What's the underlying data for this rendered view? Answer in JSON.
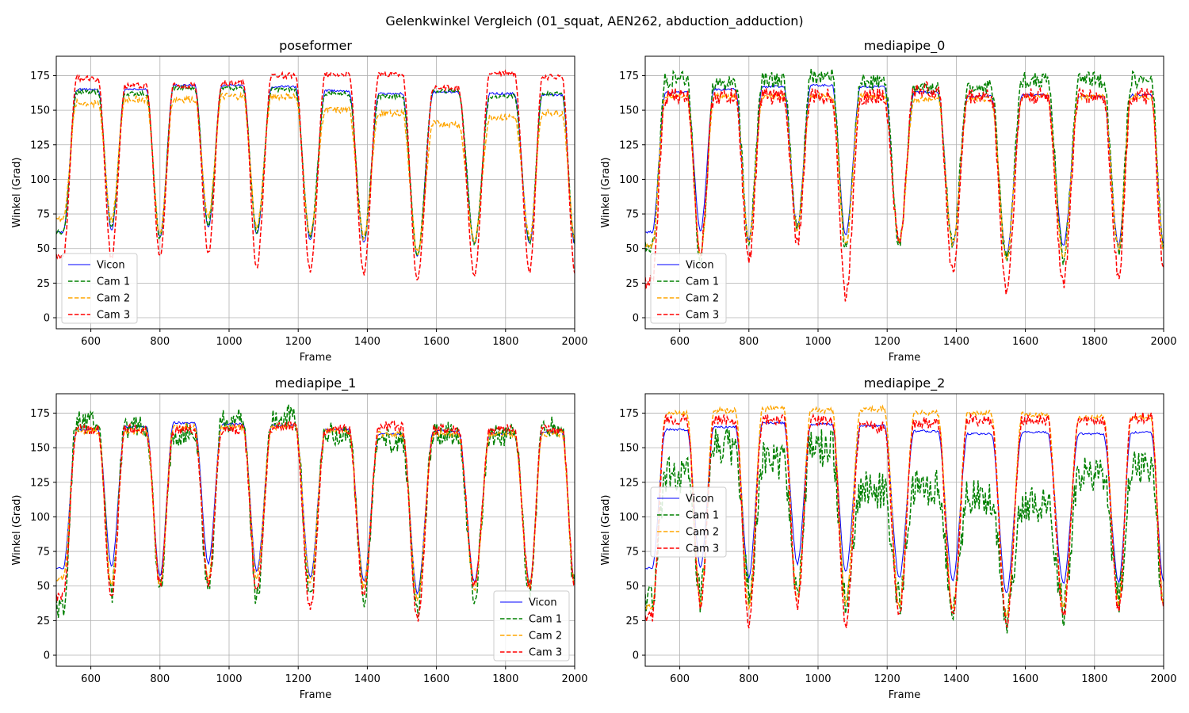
{
  "figure": {
    "title": "Gelenkwinkel Vergleich (01_squat, AEN262, abduction_adduction)"
  },
  "chart_data": [
    {
      "type": "line",
      "title": "poseformer",
      "xlabel": "Frame",
      "ylabel": "Winkel (Grad)",
      "xlim": [
        500,
        2000
      ],
      "ylim": [
        -8,
        189
      ],
      "xticks": [
        600,
        800,
        1000,
        1200,
        1400,
        1600,
        1800,
        2000
      ],
      "yticks": [
        0,
        25,
        50,
        75,
        100,
        125,
        150,
        175
      ],
      "grid": true,
      "legend_position": "lower-left",
      "series": [
        {
          "name": "Vicon",
          "color": "#0000ff",
          "style": "solid",
          "low": [
            62,
            63,
            58,
            65,
            60,
            56,
            54,
            44,
            53,
            53
          ],
          "high": [
            165,
            165,
            168,
            168,
            167,
            164,
            162,
            163,
            162,
            161
          ],
          "noise": 0.8
        },
        {
          "name": "Cam 1",
          "color": "#008000",
          "style": "dashed",
          "low": [
            62,
            65,
            57,
            67,
            62,
            58,
            57,
            45,
            54,
            55
          ],
          "high": [
            163,
            162,
            166,
            166,
            165,
            162,
            160,
            164,
            160,
            162
          ],
          "noise": 1.5
        },
        {
          "name": "Cam 2",
          "color": "#ffa500",
          "style": "dashed",
          "low": [
            72,
            70,
            60,
            72,
            65,
            60,
            58,
            47,
            55,
            58
          ],
          "high": [
            155,
            158,
            158,
            160,
            160,
            150,
            148,
            140,
            145,
            148
          ],
          "noise": 2.5
        },
        {
          "name": "Cam 3",
          "color": "#ff0000",
          "style": "dashed",
          "low": [
            44,
            42,
            44,
            46,
            37,
            33,
            31,
            27,
            30,
            34
          ],
          "high": [
            173,
            168,
            168,
            170,
            175,
            176,
            176,
            166,
            177,
            174
          ],
          "noise": 2
        }
      ]
    },
    {
      "type": "line",
      "title": "mediapipe_0",
      "xlabel": "Frame",
      "ylabel": "Winkel (Grad)",
      "xlim": [
        500,
        2000
      ],
      "ylim": [
        -8,
        189
      ],
      "xticks": [
        600,
        800,
        1000,
        1200,
        1400,
        1600,
        1800,
        2000
      ],
      "yticks": [
        0,
        25,
        50,
        75,
        100,
        125,
        150,
        175
      ],
      "grid": true,
      "legend_position": "lower-left",
      "series": [
        {
          "name": "Vicon",
          "color": "#0000ff",
          "style": "solid",
          "low": [
            62,
            63,
            56,
            66,
            60,
            55,
            53,
            45,
            52,
            53
          ],
          "high": [
            163,
            165,
            167,
            168,
            167,
            163,
            160,
            161,
            160,
            161
          ],
          "noise": 0.8
        },
        {
          "name": "Cam 1",
          "color": "#008000",
          "style": "dashed",
          "low": [
            50,
            40,
            55,
            63,
            50,
            55,
            52,
            42,
            43,
            50
          ],
          "high": [
            172,
            170,
            172,
            174,
            170,
            165,
            166,
            172,
            172,
            172
          ],
          "noise": 6
        },
        {
          "name": "Cam 2",
          "color": "#ffa500",
          "style": "dashed",
          "low": [
            52,
            45,
            56,
            64,
            52,
            55,
            53,
            42,
            44,
            50
          ],
          "high": [
            160,
            160,
            160,
            160,
            160,
            158,
            158,
            160,
            160,
            160
          ],
          "noise": 2
        },
        {
          "name": "Cam 3",
          "color": "#ff0000",
          "style": "dashed",
          "low": [
            25,
            48,
            42,
            55,
            15,
            55,
            33,
            20,
            25,
            32
          ],
          "high": [
            160,
            160,
            160,
            160,
            160,
            165,
            160,
            160,
            160,
            160
          ],
          "noise": 6
        }
      ]
    },
    {
      "type": "line",
      "title": "mediapipe_1",
      "xlabel": "Frame",
      "ylabel": "Winkel (Grad)",
      "xlim": [
        500,
        2000
      ],
      "ylim": [
        -8,
        189
      ],
      "xticks": [
        600,
        800,
        1000,
        1200,
        1400,
        1600,
        1800,
        2000
      ],
      "yticks": [
        0,
        25,
        50,
        75,
        100,
        125,
        150,
        175
      ],
      "grid": true,
      "legend_position": "lower-right",
      "series": [
        {
          "name": "Vicon",
          "color": "#0000ff",
          "style": "solid",
          "low": [
            63,
            64,
            57,
            66,
            61,
            56,
            54,
            45,
            53,
            53
          ],
          "high": [
            163,
            165,
            168,
            167,
            166,
            163,
            160,
            162,
            160,
            161
          ],
          "noise": 0.8
        },
        {
          "name": "Cam 1",
          "color": "#008000",
          "style": "dashed",
          "low": [
            36,
            45,
            45,
            48,
            42,
            42,
            43,
            33,
            45,
            48
          ],
          "high": [
            168,
            165,
            160,
            170,
            172,
            160,
            155,
            160,
            160,
            165
          ],
          "noise": 9
        },
        {
          "name": "Cam 2",
          "color": "#ffa500",
          "style": "dashed",
          "low": [
            55,
            50,
            50,
            55,
            55,
            52,
            50,
            40,
            48,
            50
          ],
          "high": [
            162,
            162,
            165,
            165,
            165,
            162,
            160,
            160,
            160,
            160
          ],
          "noise": 2
        },
        {
          "name": "Cam 3",
          "color": "#ff0000",
          "style": "dashed",
          "low": [
            42,
            40,
            50,
            50,
            45,
            33,
            42,
            25,
            50,
            50
          ],
          "high": [
            163,
            163,
            163,
            163,
            165,
            163,
            165,
            163,
            163,
            163
          ],
          "noise": 4
        }
      ]
    },
    {
      "type": "line",
      "title": "mediapipe_2",
      "xlabel": "Frame",
      "ylabel": "Winkel (Grad)",
      "xlim": [
        500,
        2000
      ],
      "ylim": [
        -8,
        189
      ],
      "xticks": [
        600,
        800,
        1000,
        1200,
        1400,
        1600,
        1800,
        2000
      ],
      "yticks": [
        0,
        25,
        50,
        75,
        100,
        125,
        150,
        175
      ],
      "grid": true,
      "legend_position": "center-left",
      "series": [
        {
          "name": "Vicon",
          "color": "#0000ff",
          "style": "solid",
          "low": [
            63,
            64,
            56,
            66,
            60,
            56,
            54,
            45,
            52,
            53
          ],
          "high": [
            163,
            165,
            168,
            167,
            166,
            162,
            160,
            161,
            160,
            161
          ],
          "noise": 0.8
        },
        {
          "name": "Cam 1",
          "color": "#008000",
          "style": "dashed",
          "low": [
            40,
            40,
            45,
            48,
            42,
            38,
            35,
            28,
            35,
            38
          ],
          "high": [
            130,
            150,
            140,
            150,
            120,
            120,
            115,
            110,
            130,
            135
          ],
          "noise": 14
        },
        {
          "name": "Cam 2",
          "color": "#ffa500",
          "style": "dashed",
          "low": [
            35,
            38,
            35,
            40,
            38,
            35,
            32,
            27,
            35,
            37
          ],
          "high": [
            175,
            177,
            178,
            177,
            178,
            175,
            175,
            174,
            172,
            172
          ],
          "noise": 2
        },
        {
          "name": "Cam 3",
          "color": "#ff0000",
          "style": "dashed",
          "low": [
            28,
            35,
            22,
            35,
            22,
            30,
            28,
            22,
            28,
            33
          ],
          "high": [
            170,
            170,
            170,
            170,
            165,
            168,
            170,
            170,
            170,
            172
          ],
          "noise": 4
        }
      ]
    }
  ]
}
